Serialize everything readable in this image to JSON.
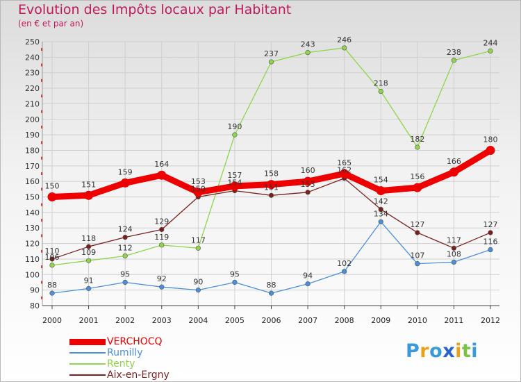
{
  "title": "Evolution des Impôts locaux par Habitant",
  "subtitle": "(en € et par an)",
  "logo": {
    "text": "Proxiti",
    "letters": [
      "P",
      "r",
      "o",
      "x",
      "i",
      "t",
      "i"
    ],
    "colors": [
      "#3a9ad9",
      "#e8a21a",
      "#3a9ad9",
      "#2a64c8",
      "#e8a21a",
      "#7cc242",
      "#3a9ad9"
    ]
  },
  "chart_data": {
    "type": "line",
    "title": "Evolution des Impôts locaux par Habitant",
    "xlabel": "",
    "ylabel": "(en € et par an)",
    "ylim": [
      80,
      250
    ],
    "yticks": [
      80,
      90,
      100,
      110,
      120,
      130,
      140,
      150,
      160,
      170,
      180,
      190,
      200,
      210,
      220,
      230,
      240,
      250
    ],
    "categories": [
      "2000",
      "2001",
      "2002",
      "2003",
      "2004",
      "2005",
      "2006",
      "2007",
      "2008",
      "2009",
      "2010",
      "2011",
      "2012"
    ],
    "series": [
      {
        "name": "VERCHOCQ",
        "color": "#ee0000",
        "values": [
          150,
          151,
          159,
          164,
          153,
          157,
          158,
          160,
          165,
          154,
          156,
          166,
          180
        ],
        "labelPos": [
          "a",
          "a",
          "a",
          "a",
          "a",
          "a",
          "a",
          "a",
          "a",
          "a",
          "a",
          "a",
          "a"
        ]
      },
      {
        "name": "Rumilly",
        "color": "#4a90d9",
        "values": [
          88,
          91,
          95,
          92,
          90,
          95,
          88,
          94,
          102,
          134,
          107,
          108,
          116
        ],
        "labelPos": [
          "a",
          "a",
          "a",
          "a",
          "a",
          "a",
          "a",
          "a",
          "a",
          "a",
          "a",
          "a",
          "a"
        ]
      },
      {
        "name": "Renty",
        "color": "#8fd44a",
        "values": [
          106,
          109,
          112,
          119,
          117,
          190,
          237,
          243,
          246,
          218,
          182,
          238,
          244
        ],
        "labelPos": [
          "a",
          "a",
          "a",
          "a",
          "a",
          "a",
          "a",
          "a",
          "a",
          "a",
          "a",
          "a",
          "a"
        ]
      },
      {
        "name": "Aix-en-Ergny",
        "color": "#7a1e1e",
        "values": [
          110,
          118,
          124,
          129,
          150,
          154,
          151,
          153,
          162,
          142,
          127,
          117,
          127
        ],
        "labelPos": [
          "a",
          "a",
          "a",
          "a",
          "a",
          "a",
          "a",
          "a",
          "a",
          "a",
          "a",
          "a",
          "a"
        ]
      }
    ]
  }
}
